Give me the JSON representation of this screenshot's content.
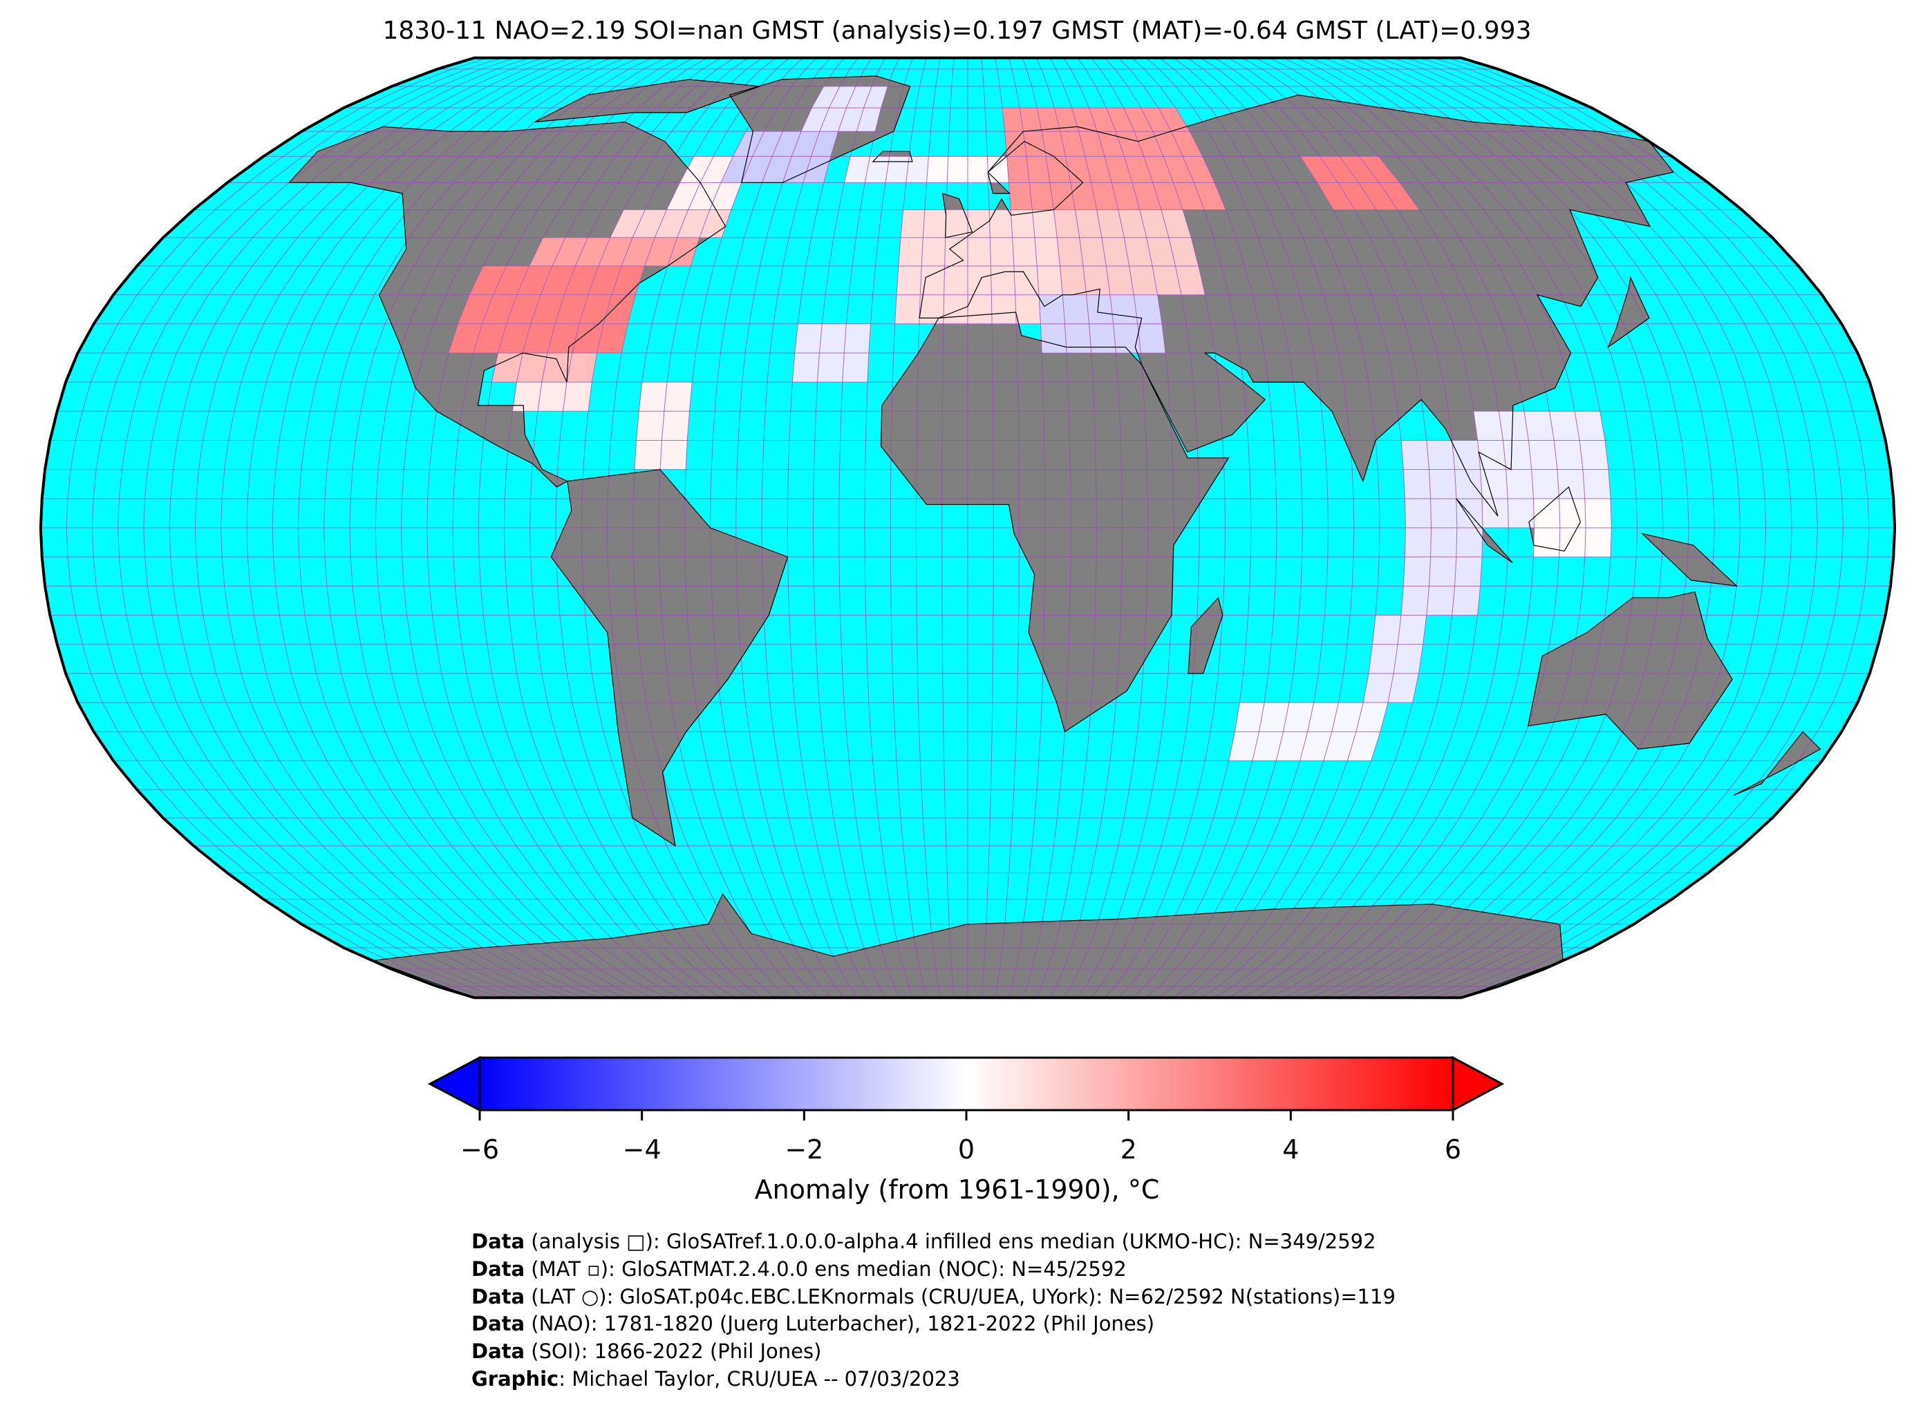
{
  "title": "1830-11 NAO=2.19 SOI=nan GMST (analysis)=0.197 GMST (MAT)=-0.64 GMST (LAT)=0.993",
  "colors": {
    "ocean": "#00ffff",
    "land": "#808080",
    "grid": "#a040c0",
    "cold": "#0000ff",
    "neutral": "#ffffff",
    "warm": "#ff0000"
  },
  "chart_data": {
    "type": "heatmap",
    "projection": "Robinson",
    "grid_resolution_deg": 5,
    "value_units": "°C anomaly",
    "cell_blocks": [
      {
        "lon": [
          -105,
          -70
        ],
        "lat": [
          30,
          45
        ],
        "value": 3.0
      },
      {
        "lon": [
          -95,
          -60
        ],
        "lat": [
          45,
          50
        ],
        "value": 2.2
      },
      {
        "lon": [
          -80,
          -55
        ],
        "lat": [
          50,
          55
        ],
        "value": 1.0
      },
      {
        "lon": [
          -70,
          -55
        ],
        "lat": [
          55,
          65
        ],
        "value": 0.3
      },
      {
        "lon": [
          -95,
          -75
        ],
        "lat": [
          25,
          30
        ],
        "value": 1.5
      },
      {
        "lon": [
          -90,
          -75
        ],
        "lat": [
          20,
          25
        ],
        "value": 0.5
      },
      {
        "lon": [
          -65,
          -55
        ],
        "lat": [
          10,
          25
        ],
        "value": 0.3
      },
      {
        "lon": [
          -60,
          -35
        ],
        "lat": [
          60,
          70
        ],
        "value": -1.2
      },
      {
        "lon": [
          -45,
          -25
        ],
        "lat": [
          70,
          80
        ],
        "value": -0.6
      },
      {
        "lon": [
          -30,
          -10
        ],
        "lat": [
          60,
          65
        ],
        "value": -0.3
      },
      {
        "lon": [
          -10,
          15
        ],
        "lat": [
          60,
          65
        ],
        "value": 0.1
      },
      {
        "lon": [
          -15,
          20
        ],
        "lat": [
          35,
          55
        ],
        "value": 0.8
      },
      {
        "lon": [
          10,
          60
        ],
        "lat": [
          55,
          75
        ],
        "value": 2.5
      },
      {
        "lon": [
          20,
          50
        ],
        "lat": [
          40,
          55
        ],
        "value": 1.2
      },
      {
        "lon": [
          15,
          40
        ],
        "lat": [
          30,
          40
        ],
        "value": -1.0
      },
      {
        "lon": [
          85,
          105
        ],
        "lat": [
          55,
          65
        ],
        "value": 3.0
      },
      {
        "lon": [
          -35,
          -20
        ],
        "lat": [
          25,
          35
        ],
        "value": -0.5
      },
      {
        "lon": [
          85,
          100
        ],
        "lat": [
          -15,
          15
        ],
        "value": -0.6
      },
      {
        "lon": [
          80,
          90
        ],
        "lat": [
          -30,
          -15
        ],
        "value": -0.5
      },
      {
        "lon": [
          55,
          85
        ],
        "lat": [
          -40,
          -30
        ],
        "value": -0.2
      },
      {
        "lon": [
          100,
          125
        ],
        "lat": [
          0,
          20
        ],
        "value": -0.4
      },
      {
        "lon": [
          110,
          125
        ],
        "lat": [
          -5,
          5
        ],
        "value": 0.1
      }
    ]
  },
  "colorbar": {
    "min": -6,
    "max": 6,
    "extend": "both",
    "ticks": [
      "−6",
      "−4",
      "−2",
      "0",
      "2",
      "4",
      "6"
    ],
    "tick_values": [
      -6,
      -4,
      -2,
      0,
      2,
      4,
      6
    ],
    "label": "Anomaly (from 1961-1990), °C"
  },
  "credits": [
    {
      "bold": "Data",
      "text": " (analysis □): GloSATref.1.0.0.0-alpha.4 infilled ens median (UKMO-HC): N=349/2592"
    },
    {
      "bold": "Data",
      "text": " (MAT ▫): GloSATMAT.2.4.0.0 ens median (NOC): N=45/2592"
    },
    {
      "bold": "Data",
      "text": " (LAT ○): GloSAT.p04c.EBC.LEKnormals (CRU/UEA, UYork): N=62/2592 N(stations)=119"
    },
    {
      "bold": "Data",
      "text": " (NAO): 1781-1820 (Juerg Luterbacher), 1821-2022 (Phil Jones)"
    },
    {
      "bold": "Data",
      "text": " (SOI): 1866-2022 (Phil Jones)"
    },
    {
      "bold": "Graphic",
      "text": ": Michael Taylor, CRU/UEA -- 07/03/2023"
    }
  ]
}
